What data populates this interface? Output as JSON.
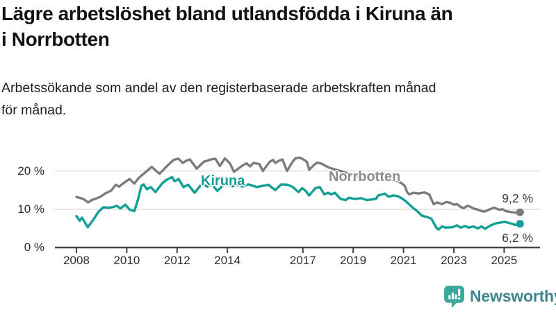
{
  "header": {
    "title_lines": [
      "Lägre arbetslöshet bland utlandsfödda i Kiruna än",
      "i Norrbotten"
    ],
    "subtitle_lines": [
      "Arbetssökande som andel av den registerbaserade arbetskraften månad",
      "för månad."
    ]
  },
  "colors": {
    "kiruna": "#12a096",
    "norrbotten": "#7c7c7c",
    "norrbotten_label": "#8c8c8c",
    "axis": "#454545",
    "grid": "#d9d9d9",
    "tick_text": "#2d2d2d",
    "value_text": "#3a3a3a",
    "brand_teal": "#3aa99b",
    "brand_text": "#3f858d"
  },
  "chart_data": {
    "type": "line",
    "title": "Lägre arbetslöshet bland utlandsfödda i Kiruna än i Norrbotten",
    "subtitle": "Arbetssökande som andel av den registerbaserade arbetskraften månad för månad.",
    "xlabel": "",
    "ylabel": "",
    "unit": "%",
    "grid": "horizontal",
    "legend_position": "inline-labels",
    "xlim": [
      2007.5,
      2026.5
    ],
    "ylim": [
      0,
      25
    ],
    "x_ticks": [
      2008,
      2010,
      2012,
      2014,
      2017,
      2019,
      2021,
      2023,
      2025
    ],
    "x_tick_labels": [
      "2008",
      "2010",
      "2012",
      "2014",
      "2017",
      "2019",
      "2021",
      "2023",
      "2025"
    ],
    "y_ticks": [
      0,
      10,
      20
    ],
    "y_tick_labels": [
      "0 %",
      "10 %",
      "20 %"
    ],
    "series": [
      {
        "name": "Kiruna",
        "color": "#12a096",
        "end_value": 6.2,
        "end_label": "6,2 %",
        "points": [
          [
            2008.0,
            8.2
          ],
          [
            2008.13,
            7.0
          ],
          [
            2008.22,
            7.8
          ],
          [
            2008.45,
            5.3
          ],
          [
            2008.64,
            7.0
          ],
          [
            2008.87,
            9.3
          ],
          [
            2009.06,
            10.5
          ],
          [
            2009.3,
            10.4
          ],
          [
            2009.47,
            10.6
          ],
          [
            2009.6,
            10.9
          ],
          [
            2009.75,
            10.2
          ],
          [
            2009.94,
            11.2
          ],
          [
            2010.12,
            9.9
          ],
          [
            2010.3,
            9.5
          ],
          [
            2010.44,
            12.4
          ],
          [
            2010.58,
            16.1
          ],
          [
            2010.67,
            16.5
          ],
          [
            2010.8,
            15.2
          ],
          [
            2010.95,
            15.8
          ],
          [
            2011.14,
            14.5
          ],
          [
            2011.4,
            16.7
          ],
          [
            2011.56,
            17.6
          ],
          [
            2011.8,
            18.4
          ],
          [
            2011.9,
            17.3
          ],
          [
            2012.06,
            17.9
          ],
          [
            2012.25,
            15.8
          ],
          [
            2012.44,
            16.4
          ],
          [
            2012.7,
            14.3
          ],
          [
            2012.99,
            16.7
          ],
          [
            2013.2,
            15.9
          ],
          [
            2013.4,
            16.4
          ],
          [
            2013.6,
            14.8
          ],
          [
            2013.8,
            16.1
          ],
          [
            2014.0,
            16.6
          ],
          [
            2014.2,
            16.0
          ],
          [
            2014.4,
            16.4
          ],
          [
            2014.6,
            15.9
          ],
          [
            2014.83,
            16.5
          ],
          [
            2015.17,
            15.8
          ],
          [
            2015.4,
            16.1
          ],
          [
            2015.63,
            16.4
          ],
          [
            2015.9,
            15.0
          ],
          [
            2016.14,
            16.5
          ],
          [
            2016.4,
            16.4
          ],
          [
            2016.6,
            15.8
          ],
          [
            2016.83,
            14.5
          ],
          [
            2016.97,
            15.5
          ],
          [
            2017.1,
            14.9
          ],
          [
            2017.25,
            13.6
          ],
          [
            2017.5,
            15.5
          ],
          [
            2017.67,
            15.8
          ],
          [
            2017.85,
            13.9
          ],
          [
            2018.0,
            14.3
          ],
          [
            2018.13,
            13.9
          ],
          [
            2018.27,
            14.3
          ],
          [
            2018.5,
            12.7
          ],
          [
            2018.7,
            12.4
          ],
          [
            2018.83,
            13.0
          ],
          [
            2019.05,
            12.7
          ],
          [
            2019.3,
            12.9
          ],
          [
            2019.55,
            12.4
          ],
          [
            2019.9,
            12.7
          ],
          [
            2020.0,
            13.6
          ],
          [
            2020.25,
            14.1
          ],
          [
            2020.4,
            13.3
          ],
          [
            2020.6,
            13.6
          ],
          [
            2020.77,
            13.4
          ],
          [
            2020.9,
            13.0
          ],
          [
            2021.09,
            12.1
          ],
          [
            2021.37,
            10.4
          ],
          [
            2021.56,
            9.4
          ],
          [
            2021.74,
            8.3
          ],
          [
            2021.97,
            7.9
          ],
          [
            2022.11,
            7.5
          ],
          [
            2022.3,
            5.2
          ],
          [
            2022.39,
            4.7
          ],
          [
            2022.53,
            5.5
          ],
          [
            2022.67,
            5.2
          ],
          [
            2022.94,
            5.3
          ],
          [
            2023.13,
            5.8
          ],
          [
            2023.27,
            5.2
          ],
          [
            2023.45,
            5.6
          ],
          [
            2023.59,
            5.2
          ],
          [
            2023.78,
            5.5
          ],
          [
            2023.96,
            5.0
          ],
          [
            2024.1,
            5.5
          ],
          [
            2024.24,
            4.9
          ],
          [
            2024.47,
            5.8
          ],
          [
            2024.66,
            6.3
          ],
          [
            2024.84,
            6.5
          ],
          [
            2025.03,
            6.7
          ],
          [
            2025.26,
            6.3
          ],
          [
            2025.44,
            5.9
          ],
          [
            2025.63,
            6.2
          ]
        ]
      },
      {
        "name": "Norrbotten",
        "color": "#7c7c7c",
        "end_value": 9.2,
        "end_label": "9,2 %",
        "points": [
          [
            2008.0,
            13.2
          ],
          [
            2008.27,
            12.7
          ],
          [
            2008.46,
            11.8
          ],
          [
            2008.64,
            12.5
          ],
          [
            2008.82,
            12.9
          ],
          [
            2008.96,
            13.3
          ],
          [
            2009.19,
            14.3
          ],
          [
            2009.38,
            14.9
          ],
          [
            2009.56,
            16.4
          ],
          [
            2009.7,
            15.9
          ],
          [
            2009.84,
            16.7
          ],
          [
            2010.11,
            17.9
          ],
          [
            2010.3,
            16.7
          ],
          [
            2010.48,
            18.2
          ],
          [
            2010.8,
            20.0
          ],
          [
            2010.99,
            21.1
          ],
          [
            2011.22,
            19.7
          ],
          [
            2011.31,
            19.3
          ],
          [
            2011.54,
            20.9
          ],
          [
            2011.86,
            22.9
          ],
          [
            2012.05,
            23.2
          ],
          [
            2012.23,
            22.1
          ],
          [
            2012.37,
            22.7
          ],
          [
            2012.51,
            23.0
          ],
          [
            2012.78,
            20.6
          ],
          [
            2013.06,
            22.4
          ],
          [
            2013.34,
            23.0
          ],
          [
            2013.52,
            23.2
          ],
          [
            2013.7,
            21.3
          ],
          [
            2013.9,
            23.3
          ],
          [
            2014.1,
            22.0
          ],
          [
            2014.26,
            19.8
          ],
          [
            2014.62,
            21.5
          ],
          [
            2014.76,
            22.0
          ],
          [
            2014.9,
            21.2
          ],
          [
            2015.04,
            22.1
          ],
          [
            2015.27,
            21.8
          ],
          [
            2015.41,
            20.0
          ],
          [
            2015.68,
            22.4
          ],
          [
            2015.82,
            22.9
          ],
          [
            2015.91,
            22.1
          ],
          [
            2016.05,
            22.7
          ],
          [
            2016.19,
            23.0
          ],
          [
            2016.37,
            20.0
          ],
          [
            2016.56,
            22.1
          ],
          [
            2016.7,
            23.3
          ],
          [
            2016.88,
            23.5
          ],
          [
            2017.02,
            23.0
          ],
          [
            2017.16,
            22.4
          ],
          [
            2017.25,
            20.3
          ],
          [
            2017.43,
            21.5
          ],
          [
            2017.57,
            22.2
          ],
          [
            2017.71,
            22.0
          ],
          [
            2017.85,
            21.5
          ],
          [
            2018.03,
            20.9
          ],
          [
            2018.17,
            20.6
          ],
          [
            2018.5,
            20.0
          ],
          [
            2018.9,
            19.1
          ],
          [
            2019.3,
            18.4
          ],
          [
            2019.7,
            17.9
          ],
          [
            2020.0,
            18.3
          ],
          [
            2020.3,
            18.9
          ],
          [
            2020.6,
            17.9
          ],
          [
            2020.9,
            16.9
          ],
          [
            2021.05,
            16.1
          ],
          [
            2021.14,
            14.5
          ],
          [
            2021.23,
            13.9
          ],
          [
            2021.4,
            14.3
          ],
          [
            2021.6,
            14.1
          ],
          [
            2021.83,
            14.4
          ],
          [
            2022.02,
            13.9
          ],
          [
            2022.2,
            11.3
          ],
          [
            2022.34,
            11.8
          ],
          [
            2022.53,
            11.3
          ],
          [
            2022.7,
            11.9
          ],
          [
            2022.85,
            11.7
          ],
          [
            2022.99,
            11.2
          ],
          [
            2023.13,
            11.3
          ],
          [
            2023.27,
            10.6
          ],
          [
            2023.4,
            10.3
          ],
          [
            2023.54,
            10.9
          ],
          [
            2023.68,
            10.6
          ],
          [
            2023.82,
            10.1
          ],
          [
            2023.96,
            9.9
          ],
          [
            2024.1,
            9.5
          ],
          [
            2024.24,
            9.4
          ],
          [
            2024.47,
            10.1
          ],
          [
            2024.6,
            10.4
          ],
          [
            2024.8,
            9.9
          ],
          [
            2024.94,
            10.0
          ],
          [
            2025.07,
            9.5
          ],
          [
            2025.26,
            9.3
          ],
          [
            2025.44,
            9.1
          ],
          [
            2025.63,
            9.2
          ]
        ]
      }
    ]
  },
  "footer": {
    "brand": "Newsworthy",
    "logo_icon": "bar-chart-speech-bubble"
  }
}
